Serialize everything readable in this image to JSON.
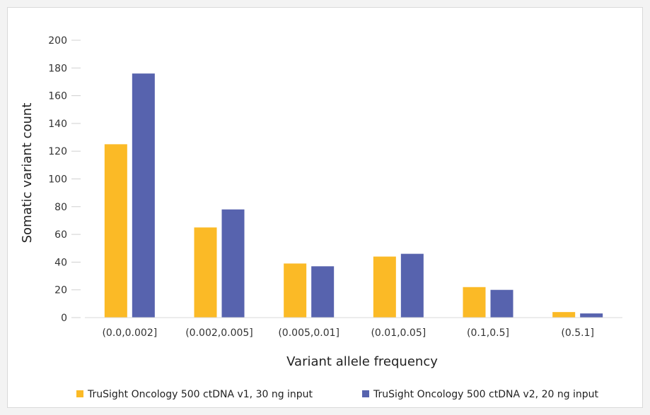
{
  "chart_data": {
    "type": "bar",
    "title": "",
    "xlabel": "Variant allele frequency",
    "ylabel": "Somatic variant count",
    "categories": [
      "(0.0,0.002]",
      "(0.002,0.005]",
      "(0.005,0.01]",
      "(0.01,0.05]",
      "(0.1,0.5]",
      "(0.5.1]"
    ],
    "series": [
      {
        "name": "TruSight Oncology 500 ctDNA v1, 30 ng input",
        "color": "#FBBA26",
        "values": [
          125,
          65,
          39,
          44,
          22,
          4
        ]
      },
      {
        "name": "TruSight Oncology 500 ctDNA v2, 20 ng input",
        "color": "#5763AE",
        "values": [
          176,
          78,
          37,
          46,
          20,
          3
        ]
      }
    ],
    "ylim": [
      0,
      200
    ],
    "yticks": [
      0,
      20,
      40,
      60,
      80,
      100,
      120,
      140,
      160,
      180,
      200
    ],
    "grid": false,
    "legend_position": "bottom"
  }
}
